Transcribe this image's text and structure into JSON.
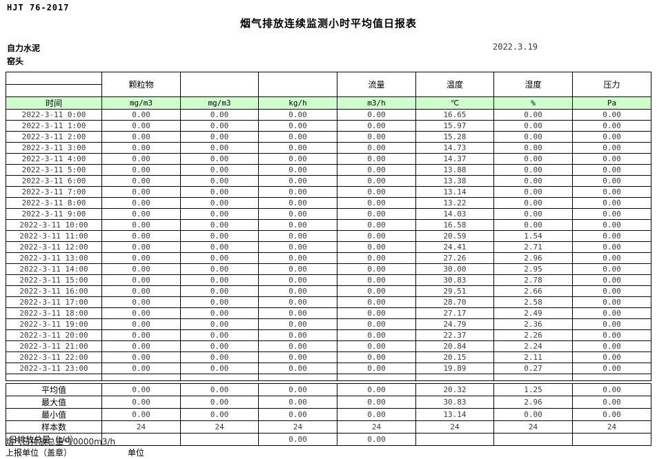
{
  "colors": {
    "unit_row_bg": "#ccffcc",
    "border": "#000000",
    "number_text": "#3a3a3a"
  },
  "header": {
    "doc_code": "HJT 76-2017",
    "title": "烟气排放连续监测小时平均值日报表",
    "company": "自力水泥",
    "station": "窑头",
    "date": "2022.3.19"
  },
  "table": {
    "group_headers": [
      "",
      "颗粒物",
      "",
      "",
      "流量",
      "温度",
      "湿度",
      "压力"
    ],
    "unit_row": [
      "时间",
      "mg/m3",
      "mg/m3",
      "kg/h",
      "m3/h",
      "℃",
      "%",
      "Pa"
    ],
    "rows": [
      {
        "time": "2022-3-11 0:00",
        "values": [
          "0.00",
          "0.00",
          "0.00",
          "0.00",
          "16.65",
          "0.00",
          "0.00"
        ]
      },
      {
        "time": "2022-3-11 1:00",
        "values": [
          "0.00",
          "0.00",
          "0.00",
          "0.00",
          "15.97",
          "0.00",
          "0.00"
        ]
      },
      {
        "time": "2022-3-11 2:00",
        "values": [
          "0.00",
          "0.00",
          "0.00",
          "0.00",
          "15.28",
          "0.00",
          "0.00"
        ]
      },
      {
        "time": "2022-3-11 3:00",
        "values": [
          "0.00",
          "0.00",
          "0.00",
          "0.00",
          "14.73",
          "0.00",
          "0.00"
        ]
      },
      {
        "time": "2022-3-11 4:00",
        "values": [
          "0.00",
          "0.00",
          "0.00",
          "0.00",
          "14.37",
          "0.00",
          "0.00"
        ]
      },
      {
        "time": "2022-3-11 5:00",
        "values": [
          "0.00",
          "0.00",
          "0.00",
          "0.00",
          "13.88",
          "0.00",
          "0.00"
        ]
      },
      {
        "time": "2022-3-11 6:00",
        "values": [
          "0.00",
          "0.00",
          "0.00",
          "0.00",
          "13.38",
          "0.00",
          "0.00"
        ]
      },
      {
        "time": "2022-3-11 7:00",
        "values": [
          "0.00",
          "0.00",
          "0.00",
          "0.00",
          "13.14",
          "0.00",
          "0.00"
        ]
      },
      {
        "time": "2022-3-11 8:00",
        "values": [
          "0.00",
          "0.00",
          "0.00",
          "0.00",
          "13.22",
          "0.00",
          "0.00"
        ]
      },
      {
        "time": "2022-3-11 9:00",
        "values": [
          "0.00",
          "0.00",
          "0.00",
          "0.00",
          "14.03",
          "0.00",
          "0.00"
        ]
      },
      {
        "time": "2022-3-11 10:00",
        "values": [
          "0.00",
          "0.00",
          "0.00",
          "0.00",
          "16.58",
          "0.00",
          "0.00"
        ]
      },
      {
        "time": "2022-3-11 11:00",
        "values": [
          "0.00",
          "0.00",
          "0.00",
          "0.00",
          "20.59",
          "1.54",
          "0.00"
        ]
      },
      {
        "time": "2022-3-11 12:00",
        "values": [
          "0.00",
          "0.00",
          "0.00",
          "0.00",
          "24.41",
          "2.71",
          "0.00"
        ]
      },
      {
        "time": "2022-3-11 13:00",
        "values": [
          "0.00",
          "0.00",
          "0.00",
          "0.00",
          "27.26",
          "2.96",
          "0.00"
        ]
      },
      {
        "time": "2022-3-11 14:00",
        "values": [
          "0.00",
          "0.00",
          "0.00",
          "0.00",
          "30.00",
          "2.95",
          "0.00"
        ]
      },
      {
        "time": "2022-3-11 15:00",
        "values": [
          "0.00",
          "0.00",
          "0.00",
          "0.00",
          "30.83",
          "2.78",
          "0.00"
        ]
      },
      {
        "time": "2022-3-11 16:00",
        "values": [
          "0.00",
          "0.00",
          "0.00",
          "0.00",
          "29.51",
          "2.66",
          "0.00"
        ]
      },
      {
        "time": "2022-3-11 17:00",
        "values": [
          "0.00",
          "0.00",
          "0.00",
          "0.00",
          "28.70",
          "2.58",
          "0.00"
        ]
      },
      {
        "time": "2022-3-11 18:00",
        "values": [
          "0.00",
          "0.00",
          "0.00",
          "0.00",
          "27.17",
          "2.49",
          "0.00"
        ]
      },
      {
        "time": "2022-3-11 19:00",
        "values": [
          "0.00",
          "0.00",
          "0.00",
          "0.00",
          "24.79",
          "2.36",
          "0.00"
        ]
      },
      {
        "time": "2022-3-11 20:00",
        "values": [
          "0.00",
          "0.00",
          "0.00",
          "0.00",
          "22.37",
          "2.26",
          "0.00"
        ]
      },
      {
        "time": "2022-3-11 21:00",
        "values": [
          "0.00",
          "0.00",
          "0.00",
          "0.00",
          "20.84",
          "2.24",
          "0.00"
        ]
      },
      {
        "time": "2022-3-11 22:00",
        "values": [
          "0.00",
          "0.00",
          "0.00",
          "0.00",
          "20.15",
          "2.11",
          "0.00"
        ]
      },
      {
        "time": "2022-3-11 23:00",
        "values": [
          "0.00",
          "0.00",
          "0.00",
          "0.00",
          "19.89",
          "0.27",
          "0.00"
        ]
      }
    ],
    "summary": [
      {
        "label": "平均值",
        "align": "center",
        "values": [
          "0.00",
          "0.00",
          "0.00",
          "0.00",
          "20.32",
          "1.25",
          "0.00"
        ]
      },
      {
        "label": "最大值",
        "align": "center",
        "values": [
          "0.00",
          "0.00",
          "0.00",
          "0.00",
          "30.83",
          "2.96",
          "0.00"
        ]
      },
      {
        "label": "最小值",
        "align": "center",
        "values": [
          "0.00",
          "0.00",
          "0.00",
          "0.00",
          "13.14",
          "0.00",
          "0.00"
        ]
      },
      {
        "label": "样本数",
        "align": "center",
        "values": [
          "24",
          "24",
          "24",
          "24",
          "24",
          "24",
          "24"
        ]
      },
      {
        "label": "日排放总量（t/d）",
        "align": "left",
        "values": [
          "",
          "",
          "0.00",
          "0.00",
          "",
          "",
          ""
        ]
      }
    ]
  },
  "footer": {
    "note": "烟气日排放总量*10000m3/h",
    "report_unit_label": "上报单位（盖章）",
    "unit_label": "单位"
  }
}
